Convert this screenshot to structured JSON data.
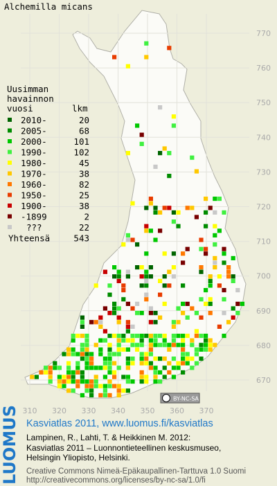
{
  "title": "Alchemilla micans",
  "legend": {
    "heading": [
      "Uusimman",
      "havainnon",
      "vuosi"
    ],
    "count_header": "lkm",
    "items": [
      {
        "label": "2010-",
        "count": 20,
        "color": "#006400"
      },
      {
        "label": "2005-",
        "count": 68,
        "color": "#008c00"
      },
      {
        "label": "2000-",
        "count": 101,
        "color": "#00c800"
      },
      {
        "label": "1990-",
        "count": 102,
        "color": "#40f040"
      },
      {
        "label": "1980-",
        "count": 45,
        "color": "#ffff00"
      },
      {
        "label": "1970-",
        "count": 38,
        "color": "#ffc800"
      },
      {
        "label": "1960-",
        "count": 82,
        "color": "#ff7800"
      },
      {
        "label": "1950-",
        "count": 25,
        "color": "#e83c00"
      },
      {
        "label": "1900-",
        "count": 38,
        "color": "#c80000"
      },
      {
        "label": "-1899",
        "count": 2,
        "color": "#780000"
      },
      {
        "label": "???",
        "count": 22,
        "color": "#c8c8c8"
      }
    ],
    "total": {
      "label": "Yhteensä",
      "count": 543
    }
  },
  "grid": {
    "x_labels": [
      310,
      320,
      330,
      340,
      350,
      360,
      370
    ],
    "y_labels": [
      770,
      760,
      750,
      740,
      730,
      720,
      710,
      700,
      690,
      680,
      670
    ]
  },
  "badge": "BY-NC-SA",
  "footer": {
    "logo": "LUOMUS",
    "link": "Kasviatlas 2011, www.luomus.fi/kasviatlas",
    "citation": [
      "Lampinen, R., Lahti, T. & Heikkinen M. 2012:",
      "Kasviatlas 2011 – Luonnontieteellinen keskusmuseo,",
      "Helsingin Yliopisto, Helsinki."
    ],
    "license": [
      "Creative Commons Nimeä-Epäkaupallinen-Tarttuva 1.0 Suomi",
      "http://creativecommons.org/licenses/by-nc-sa/1.0/fi"
    ]
  }
}
